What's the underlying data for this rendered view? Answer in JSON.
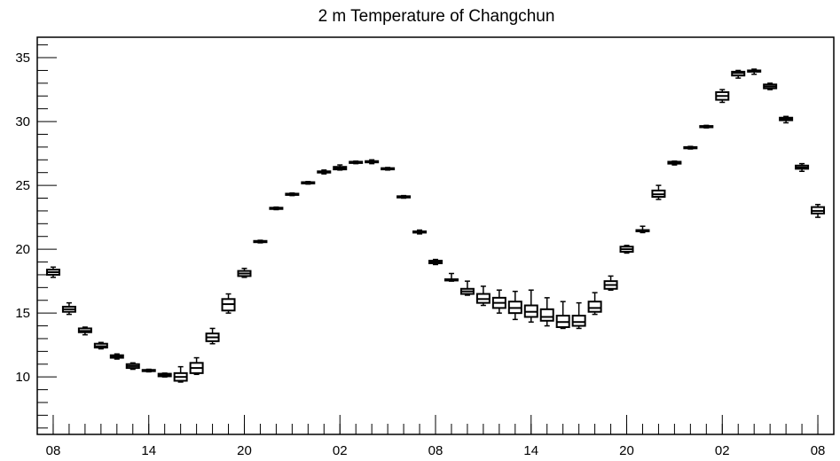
{
  "chart_data": {
    "type": "box",
    "title": "2 m Temperature of Changchun",
    "xlabel": "",
    "ylabel": "",
    "ylim": [
      5.5,
      36.6
    ],
    "yticks": [
      10,
      15,
      20,
      25,
      30,
      35
    ],
    "xticks": [
      {
        "at": 0,
        "label": "08"
      },
      {
        "at": 6,
        "label": "14"
      },
      {
        "at": 12,
        "label": "20"
      },
      {
        "at": 18,
        "label": "02"
      },
      {
        "at": 24,
        "label": "08"
      },
      {
        "at": 30,
        "label": "14"
      },
      {
        "at": 36,
        "label": "20"
      },
      {
        "at": 42,
        "label": "02"
      },
      {
        "at": 48,
        "label": "08"
      }
    ],
    "xlim": [
      -1,
      49
    ],
    "grid": false,
    "series": [
      {
        "boxes": [
          {
            "hour": 0,
            "min": 17.8,
            "q1": 18.0,
            "median": 18.2,
            "q3": 18.4,
            "max": 18.6
          },
          {
            "hour": 1,
            "min": 14.9,
            "q1": 15.1,
            "median": 15.3,
            "q3": 15.5,
            "max": 15.8
          },
          {
            "hour": 2,
            "min": 13.3,
            "q1": 13.5,
            "median": 13.6,
            "q3": 13.8,
            "max": 13.9
          },
          {
            "hour": 3,
            "min": 12.2,
            "q1": 12.3,
            "median": 12.4,
            "q3": 12.6,
            "max": 12.7
          },
          {
            "hour": 4,
            "min": 11.4,
            "q1": 11.5,
            "median": 11.6,
            "q3": 11.7,
            "max": 11.8
          },
          {
            "hour": 5,
            "min": 10.6,
            "q1": 10.7,
            "median": 10.85,
            "q3": 11.0,
            "max": 11.1
          },
          {
            "hour": 6,
            "min": 10.4,
            "q1": 10.45,
            "median": 10.5,
            "q3": 10.55,
            "max": 10.6
          },
          {
            "hour": 7,
            "min": 10.0,
            "q1": 10.05,
            "median": 10.15,
            "q3": 10.25,
            "max": 10.3
          },
          {
            "hour": 8,
            "min": 9.6,
            "q1": 9.7,
            "median": 10.0,
            "q3": 10.3,
            "max": 10.8
          },
          {
            "hour": 9,
            "min": 10.2,
            "q1": 10.3,
            "median": 10.7,
            "q3": 11.1,
            "max": 11.5
          },
          {
            "hour": 10,
            "min": 12.6,
            "q1": 12.8,
            "median": 13.1,
            "q3": 13.4,
            "max": 13.8
          },
          {
            "hour": 11,
            "min": 15.0,
            "q1": 15.2,
            "median": 15.7,
            "q3": 16.1,
            "max": 16.5
          },
          {
            "hour": 12,
            "min": 17.8,
            "q1": 17.9,
            "median": 18.1,
            "q3": 18.3,
            "max": 18.5
          },
          {
            "hour": 13,
            "min": 20.5,
            "q1": 20.55,
            "median": 20.6,
            "q3": 20.65,
            "max": 20.7
          },
          {
            "hour": 14,
            "min": 23.1,
            "q1": 23.15,
            "median": 23.2,
            "q3": 23.25,
            "max": 23.3
          },
          {
            "hour": 15,
            "min": 24.2,
            "q1": 24.25,
            "median": 24.3,
            "q3": 24.35,
            "max": 24.4
          },
          {
            "hour": 16,
            "min": 25.1,
            "q1": 25.15,
            "median": 25.2,
            "q3": 25.25,
            "max": 25.3
          },
          {
            "hour": 17,
            "min": 25.9,
            "q1": 26.0,
            "median": 26.05,
            "q3": 26.1,
            "max": 26.2
          },
          {
            "hour": 18,
            "min": 26.2,
            "q1": 26.25,
            "median": 26.35,
            "q3": 26.45,
            "max": 26.6
          },
          {
            "hour": 19,
            "min": 26.7,
            "q1": 26.75,
            "median": 26.8,
            "q3": 26.85,
            "max": 26.9
          },
          {
            "hour": 20,
            "min": 26.7,
            "q1": 26.8,
            "median": 26.85,
            "q3": 26.9,
            "max": 27.0
          },
          {
            "hour": 21,
            "min": 26.2,
            "q1": 26.25,
            "median": 26.3,
            "q3": 26.35,
            "max": 26.4
          },
          {
            "hour": 22,
            "min": 24.0,
            "q1": 24.05,
            "median": 24.1,
            "q3": 24.15,
            "max": 24.2
          },
          {
            "hour": 23,
            "min": 21.2,
            "q1": 21.3,
            "median": 21.35,
            "q3": 21.4,
            "max": 21.5
          },
          {
            "hour": 24,
            "min": 18.8,
            "q1": 18.9,
            "median": 19.0,
            "q3": 19.1,
            "max": 19.2
          },
          {
            "hour": 25,
            "min": 17.5,
            "q1": 17.55,
            "median": 17.6,
            "q3": 17.65,
            "max": 18.1
          },
          {
            "hour": 26,
            "min": 16.4,
            "q1": 16.5,
            "median": 16.7,
            "q3": 16.9,
            "max": 17.5
          },
          {
            "hour": 27,
            "min": 15.6,
            "q1": 15.8,
            "median": 16.1,
            "q3": 16.5,
            "max": 17.1
          },
          {
            "hour": 28,
            "min": 15.0,
            "q1": 15.4,
            "median": 15.8,
            "q3": 16.2,
            "max": 16.8
          },
          {
            "hour": 29,
            "min": 14.5,
            "q1": 15.0,
            "median": 15.4,
            "q3": 15.9,
            "max": 16.7
          },
          {
            "hour": 30,
            "min": 14.3,
            "q1": 14.7,
            "median": 15.1,
            "q3": 15.6,
            "max": 16.8
          },
          {
            "hour": 31,
            "min": 14.0,
            "q1": 14.4,
            "median": 14.7,
            "q3": 15.3,
            "max": 16.2
          },
          {
            "hour": 32,
            "min": 13.8,
            "q1": 13.9,
            "median": 14.3,
            "q3": 14.8,
            "max": 15.9
          },
          {
            "hour": 33,
            "min": 13.8,
            "q1": 14.0,
            "median": 14.3,
            "q3": 14.8,
            "max": 15.8
          },
          {
            "hour": 34,
            "min": 14.9,
            "q1": 15.1,
            "median": 15.4,
            "q3": 15.9,
            "max": 16.6
          },
          {
            "hour": 35,
            "min": 16.8,
            "q1": 16.9,
            "median": 17.2,
            "q3": 17.5,
            "max": 17.9
          },
          {
            "hour": 36,
            "min": 19.7,
            "q1": 19.8,
            "median": 20.0,
            "q3": 20.2,
            "max": 20.3
          },
          {
            "hour": 37,
            "min": 21.3,
            "q1": 21.4,
            "median": 21.45,
            "q3": 21.5,
            "max": 21.8
          },
          {
            "hour": 38,
            "min": 23.9,
            "q1": 24.1,
            "median": 24.3,
            "q3": 24.6,
            "max": 25.0
          },
          {
            "hour": 39,
            "min": 26.6,
            "q1": 26.7,
            "median": 26.75,
            "q3": 26.85,
            "max": 26.9
          },
          {
            "hour": 40,
            "min": 27.85,
            "q1": 27.9,
            "median": 27.95,
            "q3": 28.0,
            "max": 28.05
          },
          {
            "hour": 41,
            "min": 29.5,
            "q1": 29.55,
            "median": 29.6,
            "q3": 29.65,
            "max": 29.7
          },
          {
            "hour": 42,
            "min": 31.5,
            "q1": 31.7,
            "median": 32.0,
            "q3": 32.3,
            "max": 32.5
          },
          {
            "hour": 43,
            "min": 33.4,
            "q1": 33.6,
            "median": 33.8,
            "q3": 33.9,
            "max": 34.0
          },
          {
            "hour": 44,
            "min": 33.7,
            "q1": 33.9,
            "median": 33.95,
            "q3": 34.0,
            "max": 34.1
          },
          {
            "hour": 45,
            "min": 32.5,
            "q1": 32.6,
            "median": 32.75,
            "q3": 32.9,
            "max": 33.0
          },
          {
            "hour": 46,
            "min": 29.9,
            "q1": 30.1,
            "median": 30.2,
            "q3": 30.3,
            "max": 30.4
          },
          {
            "hour": 47,
            "min": 26.1,
            "q1": 26.3,
            "median": 26.4,
            "q3": 26.55,
            "max": 26.7
          },
          {
            "hour": 48,
            "min": 22.5,
            "q1": 22.8,
            "median": 23.0,
            "q3": 23.3,
            "max": 23.5
          }
        ]
      }
    ]
  }
}
